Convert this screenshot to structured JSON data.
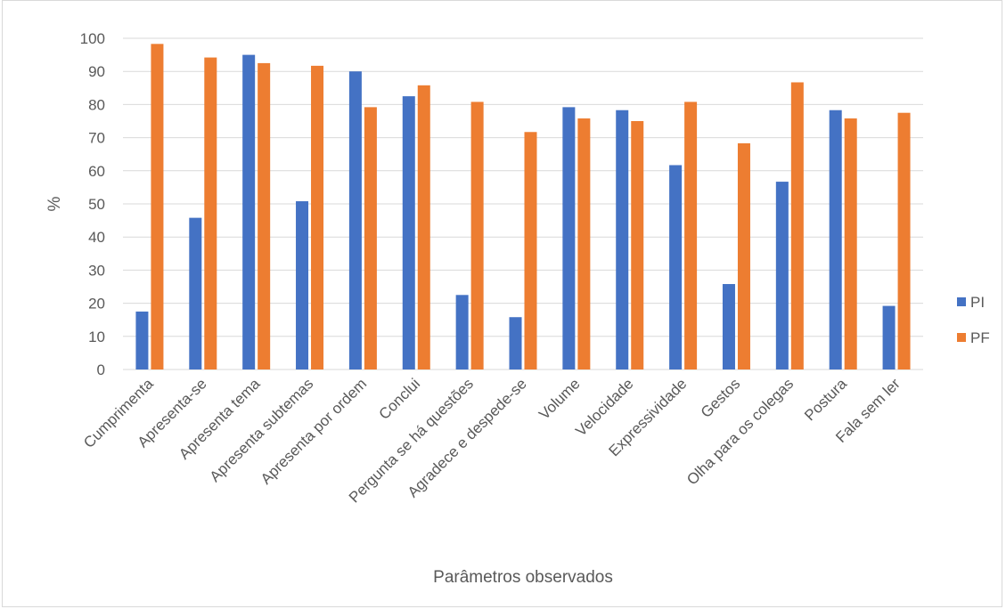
{
  "chart_data": {
    "type": "bar",
    "title": "",
    "xlabel": "Parâmetros observados",
    "ylabel": "%",
    "ylim": [
      0,
      100
    ],
    "yticks": [
      0,
      10,
      20,
      30,
      40,
      50,
      60,
      70,
      80,
      90,
      100
    ],
    "grid": "horizontal",
    "legend_position": "right",
    "categories": [
      "Cumprimenta",
      "Apresenta-se",
      "Apresenta tema",
      "Apresenta subtemas",
      "Apresenta por ordem",
      "Conclui",
      "Pergunta se há questões",
      "Agradece e despede-se",
      "Volume",
      "Velocidade",
      "Expressividade",
      "Gestos",
      "Olha para os colegas",
      "Postura",
      "Fala sem ler"
    ],
    "series": [
      {
        "name": "PI",
        "color": "#4472C4",
        "values": [
          17.5,
          45.8,
          95,
          50.8,
          90,
          82.5,
          22.5,
          15.8,
          79.2,
          78.3,
          61.7,
          25.8,
          56.7,
          78.3,
          19.2
        ]
      },
      {
        "name": "PF",
        "color": "#ED7D31",
        "values": [
          98.3,
          94.2,
          92.5,
          91.7,
          79.2,
          85.8,
          80.8,
          71.7,
          75.8,
          75,
          80.8,
          68.3,
          86.7,
          75.8,
          77.5
        ]
      }
    ]
  }
}
